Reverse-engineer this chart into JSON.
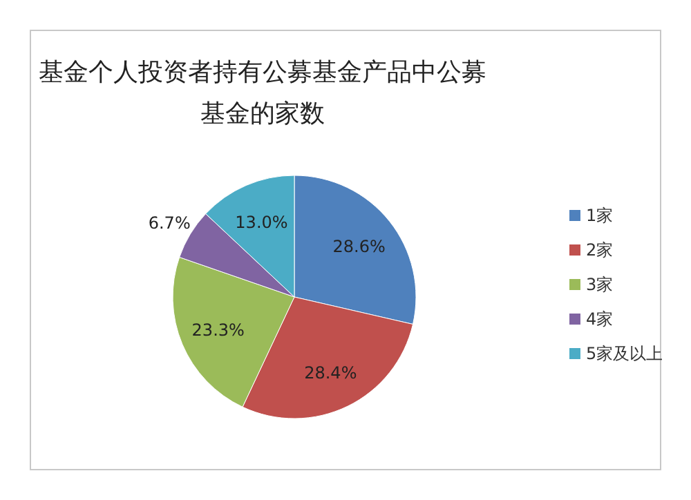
{
  "chart_data": {
    "type": "pie",
    "title": "基金个人投资者持有公募基金产品中公募基金的家数",
    "categories": [
      "1家",
      "2家",
      "3家",
      "4家",
      "5家及以上"
    ],
    "values": [
      28.6,
      28.4,
      23.3,
      6.7,
      13.0
    ],
    "colors": [
      "#4f81bd",
      "#c0504d",
      "#9bbb59",
      "#8064a2",
      "#4bacc6"
    ],
    "value_labels": [
      "28.6%",
      "28.4%",
      "23.3%",
      "6.7%",
      "13.0%"
    ],
    "legend": "right"
  }
}
